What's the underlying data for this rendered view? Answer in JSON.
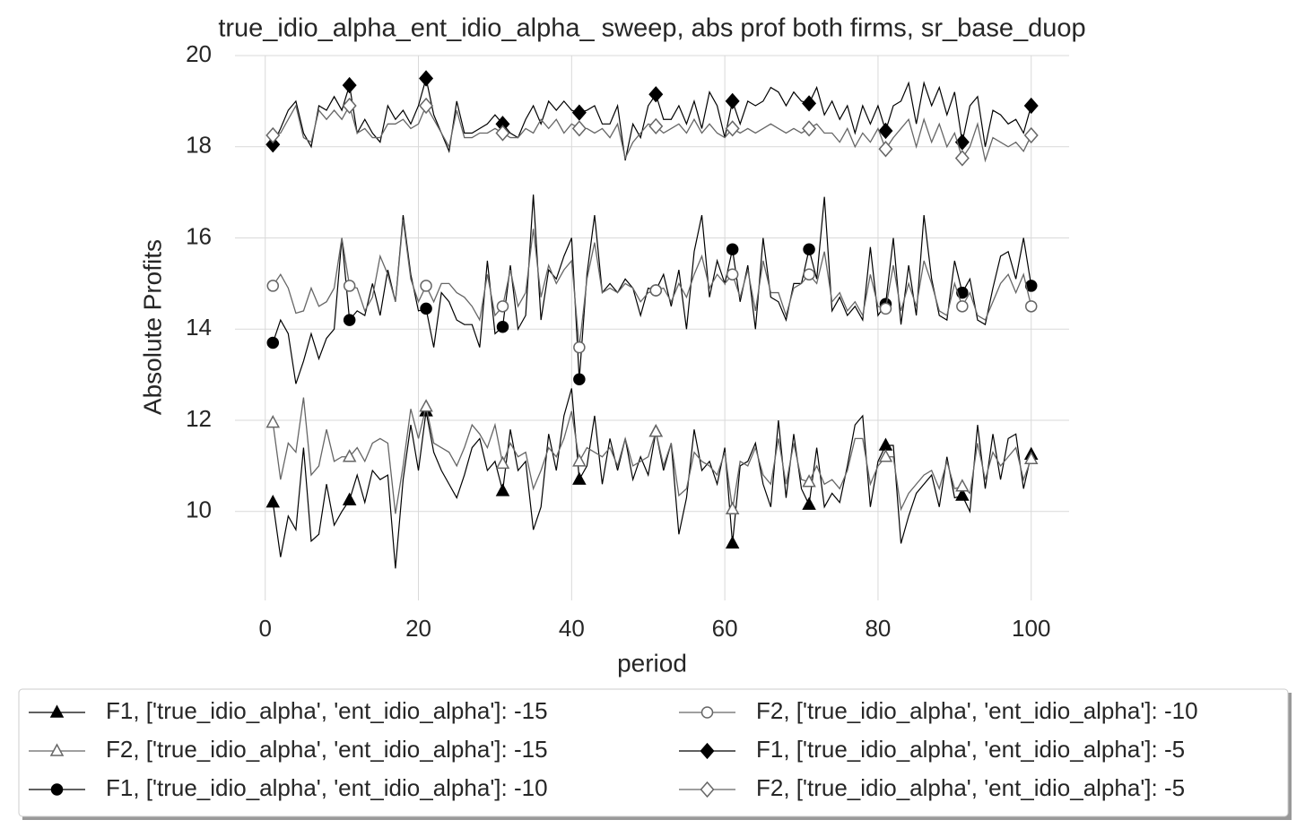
{
  "chart_data": {
    "type": "line",
    "title": "true_idio_alpha_ent_idio_alpha_ sweep, abs prof both firms, sr_base_duop",
    "xlabel": "period",
    "ylabel": "Absolute Profits",
    "x": [
      1,
      2,
      3,
      4,
      5,
      6,
      7,
      8,
      9,
      10,
      11,
      12,
      13,
      14,
      15,
      16,
      17,
      18,
      19,
      20,
      21,
      22,
      23,
      24,
      25,
      26,
      27,
      28,
      29,
      30,
      31,
      32,
      33,
      34,
      35,
      36,
      37,
      38,
      39,
      40,
      41,
      42,
      43,
      44,
      45,
      46,
      47,
      48,
      49,
      50,
      51,
      52,
      53,
      54,
      55,
      56,
      57,
      58,
      59,
      60,
      61,
      62,
      63,
      64,
      65,
      66,
      67,
      68,
      69,
      70,
      71,
      72,
      73,
      74,
      75,
      76,
      77,
      78,
      79,
      80,
      81,
      82,
      83,
      84,
      85,
      86,
      87,
      88,
      89,
      90,
      91,
      92,
      93,
      94,
      95,
      96,
      97,
      98,
      99,
      100
    ],
    "xlim": [
      -3.95,
      104.95
    ],
    "xticks": [
      0,
      20,
      40,
      60,
      80,
      100
    ],
    "ylim": [
      8.05,
      20
    ],
    "yticks": [
      10,
      12,
      14,
      16,
      18,
      20
    ],
    "grid": true,
    "legend": "below",
    "series": [
      {
        "name": "F1, ['true_idio_alpha', 'ent_idio_alpha']: -15",
        "color": "#000000",
        "marker": "triangle",
        "marker_filled": true,
        "values": [
          10.2,
          9.0,
          9.9,
          9.6,
          11.4,
          9.35,
          9.5,
          10.6,
          9.7,
          10.0,
          10.25,
          10.8,
          10.2,
          10.9,
          10.7,
          10.8,
          8.75,
          10.7,
          11.9,
          10.9,
          12.2,
          11.3,
          10.9,
          10.6,
          10.3,
          10.8,
          11.4,
          11.6,
          10.9,
          11.1,
          10.45,
          11.8,
          10.9,
          11.1,
          9.6,
          10.1,
          11.7,
          10.9,
          12.1,
          12.7,
          10.7,
          11.0,
          12.1,
          10.6,
          11.6,
          10.9,
          11.6,
          10.7,
          11.2,
          10.8,
          11.75,
          10.9,
          11.5,
          9.5,
          10.3,
          11.8,
          10.9,
          11.1,
          10.6,
          11.4,
          9.3,
          11.0,
          11.1,
          11.5,
          10.6,
          10.1,
          12.0,
          10.3,
          11.7,
          10.5,
          10.15,
          11.4,
          10.1,
          10.4,
          10.2,
          11.0,
          11.9,
          12.1,
          10.1,
          11.1,
          11.45,
          11.45,
          9.3,
          9.9,
          10.4,
          10.6,
          10.8,
          10.1,
          11.2,
          10.3,
          10.35,
          10.0,
          11.9,
          10.5,
          11.7,
          10.7,
          11.6,
          11.7,
          10.5,
          11.25
        ]
      },
      {
        "name": "F2, ['true_idio_alpha', 'ent_idio_alpha']: -15",
        "color": "#666666",
        "marker": "triangle",
        "marker_filled": false,
        "values": [
          11.95,
          10.7,
          11.5,
          11.3,
          12.5,
          10.8,
          11.0,
          11.8,
          11.1,
          11.2,
          11.2,
          11.4,
          11.1,
          11.5,
          11.6,
          11.5,
          9.95,
          11.0,
          12.25,
          11.6,
          12.3,
          11.5,
          11.4,
          11.3,
          11.0,
          11.4,
          11.9,
          11.7,
          11.4,
          11.9,
          11.05,
          11.5,
          11.2,
          11.3,
          10.5,
          10.9,
          11.4,
          11.2,
          11.6,
          12.2,
          11.1,
          11.4,
          11.3,
          11.2,
          11.4,
          11.0,
          11.6,
          11.0,
          11.1,
          11.2,
          11.75,
          11.0,
          11.5,
          10.35,
          10.5,
          11.3,
          11.1,
          11.0,
          10.8,
          11.3,
          10.05,
          11.1,
          11.0,
          11.4,
          10.8,
          10.6,
          11.6,
          10.6,
          11.5,
          10.7,
          10.65,
          11.0,
          10.6,
          10.7,
          10.5,
          10.9,
          11.6,
          11.6,
          10.6,
          11.0,
          11.2,
          11.2,
          10.05,
          10.4,
          10.6,
          10.8,
          10.9,
          10.5,
          11.1,
          10.5,
          10.55,
          10.4,
          11.5,
          10.7,
          11.3,
          11.0,
          11.2,
          11.4,
          10.7,
          11.15
        ]
      },
      {
        "name": "F1, ['true_idio_alpha', 'ent_idio_alpha']: -10",
        "color": "#000000",
        "marker": "circle",
        "marker_filled": true,
        "values": [
          13.7,
          14.2,
          13.9,
          12.8,
          13.3,
          13.9,
          13.35,
          13.8,
          14.0,
          16.0,
          14.2,
          14.4,
          14.3,
          15.0,
          14.3,
          15.3,
          14.6,
          16.5,
          15.2,
          14.4,
          14.45,
          13.6,
          14.8,
          14.6,
          14.2,
          14.1,
          14.1,
          13.6,
          15.5,
          13.9,
          14.05,
          15.4,
          14.0,
          14.3,
          16.95,
          14.2,
          15.3,
          15.1,
          15.6,
          16.0,
          12.9,
          15.2,
          16.5,
          14.8,
          15.0,
          14.8,
          15.1,
          14.9,
          14.3,
          14.9,
          14.85,
          15.2,
          14.5,
          15.3,
          14.0,
          15.7,
          16.5,
          14.7,
          15.5,
          15.0,
          15.75,
          14.6,
          15.4,
          14.0,
          16.0,
          14.7,
          14.6,
          14.2,
          15.0,
          15.0,
          15.75,
          15.1,
          16.9,
          14.4,
          14.7,
          14.3,
          14.5,
          14.2,
          15.8,
          14.3,
          14.55,
          16.0,
          14.1,
          15.4,
          14.3,
          16.5,
          15.1,
          14.3,
          14.2,
          15.5,
          14.8,
          15.1,
          14.2,
          14.1,
          14.9,
          15.6,
          15.7,
          15.1,
          16.0,
          14.95
        ]
      },
      {
        "name": "F2, ['true_idio_alpha', 'ent_idio_alpha']: -10",
        "color": "#666666",
        "marker": "circle",
        "marker_filled": false,
        "values": [
          14.95,
          15.2,
          14.9,
          14.35,
          14.4,
          14.9,
          14.5,
          14.6,
          14.9,
          16.0,
          14.95,
          14.9,
          14.4,
          14.7,
          15.6,
          15.2,
          14.6,
          16.4,
          15.1,
          14.6,
          14.95,
          14.6,
          15.0,
          15.0,
          14.8,
          14.7,
          14.5,
          14.2,
          15.2,
          14.3,
          14.5,
          15.3,
          14.5,
          14.8,
          16.2,
          14.7,
          15.4,
          15.0,
          15.3,
          15.5,
          13.6,
          15.1,
          15.9,
          14.8,
          14.9,
          14.8,
          15.0,
          14.9,
          14.6,
          14.8,
          14.85,
          14.9,
          14.6,
          15.0,
          14.7,
          15.2,
          15.6,
          14.9,
          15.2,
          15.0,
          15.2,
          14.7,
          15.3,
          14.4,
          15.5,
          14.8,
          14.8,
          14.3,
          14.9,
          15.0,
          15.2,
          15.0,
          15.7,
          14.6,
          14.8,
          14.4,
          14.6,
          14.3,
          15.2,
          14.5,
          14.45,
          15.4,
          14.4,
          15.0,
          14.5,
          15.5,
          15.0,
          14.4,
          14.3,
          15.0,
          14.5,
          14.8,
          14.3,
          14.2,
          14.6,
          15.0,
          15.2,
          14.8,
          15.2,
          14.5
        ]
      },
      {
        "name": "F1, ['true_idio_alpha', 'ent_idio_alpha']: -5",
        "color": "#000000",
        "marker": "diamond",
        "marker_filled": true,
        "values": [
          18.05,
          18.4,
          18.8,
          19.0,
          18.3,
          18.0,
          18.9,
          18.8,
          19.1,
          18.8,
          19.35,
          18.3,
          18.6,
          18.3,
          18.1,
          18.9,
          18.6,
          18.8,
          18.5,
          18.9,
          19.5,
          18.7,
          18.3,
          17.9,
          19.0,
          18.3,
          18.3,
          18.4,
          18.5,
          18.7,
          18.5,
          18.3,
          18.2,
          18.6,
          18.9,
          18.5,
          19.0,
          18.8,
          19.0,
          18.8,
          18.75,
          18.8,
          18.9,
          18.5,
          18.5,
          18.9,
          17.7,
          18.5,
          18.2,
          18.9,
          19.15,
          18.6,
          18.6,
          18.9,
          18.5,
          19.0,
          18.4,
          19.2,
          18.9,
          18.2,
          19.0,
          18.5,
          19.0,
          18.9,
          19.0,
          19.3,
          19.2,
          18.9,
          19.2,
          19.0,
          18.95,
          19.3,
          18.7,
          19.0,
          18.6,
          18.9,
          18.3,
          18.9,
          18.5,
          18.9,
          18.35,
          18.9,
          19.0,
          19.4,
          18.5,
          19.4,
          18.9,
          19.3,
          18.7,
          19.2,
          18.1,
          18.9,
          19.1,
          18.0,
          18.8,
          18.7,
          18.5,
          18.6,
          18.3,
          18.9
        ]
      },
      {
        "name": "F2, ['true_idio_alpha', 'ent_idio_alpha']: -5",
        "color": "#666666",
        "marker": "diamond",
        "marker_filled": false,
        "values": [
          18.25,
          18.3,
          18.6,
          18.9,
          18.2,
          18.1,
          18.8,
          18.6,
          18.8,
          18.6,
          18.9,
          18.3,
          18.4,
          18.2,
          18.2,
          18.5,
          18.5,
          18.6,
          18.4,
          18.5,
          18.9,
          18.6,
          18.3,
          18.0,
          18.8,
          18.2,
          18.2,
          18.3,
          18.3,
          18.4,
          18.3,
          18.2,
          18.2,
          18.4,
          18.3,
          18.6,
          18.4,
          18.6,
          18.3,
          18.5,
          18.4,
          18.4,
          18.3,
          18.4,
          18.2,
          18.5,
          17.75,
          18.1,
          18.3,
          18.5,
          18.45,
          18.3,
          18.4,
          18.5,
          18.3,
          18.6,
          18.3,
          18.5,
          18.3,
          18.2,
          18.4,
          18.3,
          18.4,
          18.3,
          18.4,
          18.5,
          18.4,
          18.3,
          18.4,
          18.3,
          18.4,
          18.5,
          18.3,
          18.3,
          18.1,
          18.4,
          18.0,
          18.3,
          18.1,
          18.4,
          17.95,
          18.2,
          18.4,
          18.6,
          18.0,
          18.6,
          18.1,
          18.5,
          18.0,
          18.3,
          17.75,
          18.0,
          18.5,
          17.7,
          18.2,
          18.1,
          18.0,
          18.1,
          17.9,
          18.25
        ]
      }
    ]
  }
}
